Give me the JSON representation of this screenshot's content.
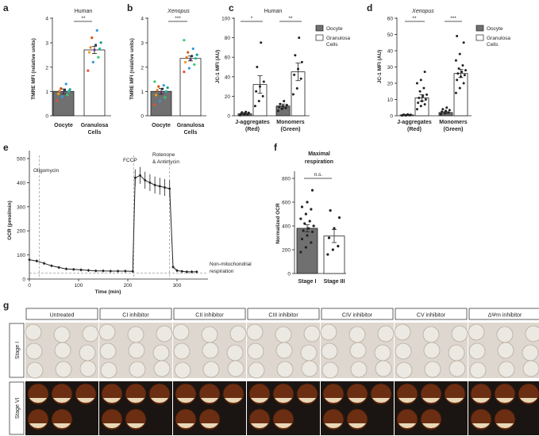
{
  "chart_data": [
    {
      "panel": "a",
      "type": "bar",
      "title": "Human",
      "ylabel": "TMRE MFI (relative units)",
      "ylim": [
        0,
        4
      ],
      "yticks": [
        0,
        1,
        2,
        3,
        4
      ],
      "categories": [
        "Oocyte",
        "Granulosa Cells"
      ],
      "values": [
        1.0,
        2.7
      ],
      "errors": [
        0.1,
        0.15
      ],
      "bar_colors": [
        "#707070",
        "#ffffff"
      ],
      "points": [
        [
          0.62,
          0.78,
          0.85,
          0.9,
          0.95,
          1.0,
          1.02,
          1.05,
          1.08,
          1.12,
          1.3
        ],
        [
          1.85,
          2.2,
          2.4,
          2.6,
          2.7,
          2.75,
          2.8,
          2.9,
          3.0,
          3.2,
          3.5
        ]
      ],
      "point_colors": [
        "#e74c3c",
        "#3498db",
        "#2ecc71",
        "#f39c12",
        "#8e44ad",
        "#1abc9c",
        "#e67e22",
        "#2c3e50",
        "#16a085",
        "#d35400",
        "#3498db"
      ],
      "significance": "**"
    },
    {
      "panel": "b",
      "type": "bar",
      "title": "Xenopus",
      "ylabel": "TMRE MFI (relative units)",
      "ylim": [
        0,
        4
      ],
      "yticks": [
        0,
        1,
        2,
        3,
        4
      ],
      "categories": [
        "Oocyte",
        "Granulosa Cells"
      ],
      "values": [
        1.0,
        2.35
      ],
      "errors": [
        0.12,
        0.1
      ],
      "bar_colors": [
        "#707070",
        "#ffffff"
      ],
      "points": [
        [
          0.45,
          0.6,
          0.75,
          0.85,
          0.95,
          1.0,
          1.05,
          1.1,
          1.15,
          1.2,
          1.25,
          1.4
        ],
        [
          1.8,
          1.95,
          2.1,
          2.2,
          2.3,
          2.35,
          2.4,
          2.45,
          2.5,
          2.6,
          2.75,
          3.1
        ]
      ],
      "point_colors": [
        "#e74c3c",
        "#3498db",
        "#2ecc71",
        "#f39c12",
        "#8e44ad",
        "#1abc9c",
        "#e67e22",
        "#2c3e50",
        "#16a085",
        "#d35400",
        "#3498db",
        "#2ecc71"
      ],
      "significance": "***"
    },
    {
      "panel": "c",
      "type": "bar",
      "title": "Human",
      "ylabel": "JC-1 MFI (AU)",
      "ylim": [
        0,
        100
      ],
      "yticks": [
        0,
        20,
        40,
        60,
        80,
        100
      ],
      "categories": [
        "J-aggregates (Red)",
        "Monomers (Green)"
      ],
      "series": [
        {
          "name": "Oocyte",
          "values": [
            2,
            10
          ]
        },
        {
          "name": "Granulosa Cells",
          "values": [
            32,
            45
          ]
        }
      ],
      "errors": [
        [
          1,
          2
        ],
        [
          9,
          9
        ]
      ],
      "points": [
        [
          [
            0.5,
            1,
            1.5,
            2,
            2.5,
            3,
            3.5,
            4
          ],
          [
            5,
            7,
            8,
            9,
            10,
            11,
            12,
            15
          ]
        ],
        [
          [
            10,
            15,
            20,
            25,
            30,
            35,
            50,
            75
          ],
          [
            22,
            28,
            38,
            42,
            48,
            55,
            62,
            80
          ]
        ]
      ],
      "significance": [
        "*",
        "**"
      ],
      "legend": [
        "Oocyte",
        "Granulosa Cells"
      ]
    },
    {
      "panel": "d",
      "type": "bar",
      "title": "Xenopus",
      "ylabel": "JC-1 MFI (AU)",
      "ylim": [
        0,
        60
      ],
      "yticks": [
        0,
        10,
        20,
        30,
        40,
        50,
        60
      ],
      "categories": [
        "J-aggregates (Red)",
        "Monomers (Green)"
      ],
      "series": [
        {
          "name": "Oocyte",
          "values": [
            0.5,
            2
          ]
        },
        {
          "name": "Granulosa Cells",
          "values": [
            11,
            26
          ]
        }
      ],
      "errors": [
        [
          0.2,
          0.5
        ],
        [
          2,
          2.5
        ]
      ],
      "points": [
        [
          [
            0.1,
            0.2,
            0.3,
            0.4,
            0.5,
            0.6,
            0.7,
            0.8
          ],
          [
            1,
            1.5,
            2,
            2.5,
            3,
            3.5,
            4,
            5
          ]
        ],
        [
          [
            4,
            6,
            7,
            8,
            9,
            10,
            11,
            12,
            13,
            15,
            17,
            20,
            22,
            27
          ],
          [
            14,
            17,
            20,
            22,
            24,
            25,
            26,
            27,
            28,
            29,
            31,
            34,
            38,
            45,
            49
          ]
        ]
      ],
      "significance": [
        "**",
        "***"
      ],
      "legend": [
        "Oocyte",
        "Granulosa Cells"
      ]
    },
    {
      "panel": "e",
      "type": "line",
      "xlabel": "Time (min)",
      "ylabel": "OCR (pmol/min)",
      "xlim": [
        0,
        350
      ],
      "ylim": [
        0,
        500
      ],
      "xticks": [
        0,
        100,
        200,
        300
      ],
      "yticks": [
        0,
        100,
        200,
        300,
        400,
        500
      ],
      "x": [
        0,
        15,
        30,
        45,
        60,
        75,
        90,
        105,
        120,
        135,
        150,
        165,
        180,
        195,
        210,
        215,
        225,
        235,
        245,
        255,
        265,
        275,
        285,
        292,
        300,
        310,
        320,
        330,
        340
      ],
      "y": [
        80,
        75,
        65,
        55,
        48,
        42,
        40,
        38,
        36,
        34,
        34,
        33,
        33,
        33,
        32,
        420,
        430,
        410,
        400,
        390,
        385,
        380,
        375,
        50,
        35,
        32,
        30,
        30,
        30
      ],
      "annotations": [
        "Oligomycin",
        "FCCP",
        "Rotenone & Antimycin",
        "Non-mitochondrial respiration"
      ],
      "injection_times": [
        20,
        212,
        285
      ],
      "baseline": 25
    },
    {
      "panel": "f",
      "type": "bar",
      "title": "Maximal respiration",
      "ylabel": "Normalized OCR",
      "ylim": [
        0,
        800
      ],
      "yticks": [
        0,
        200,
        400,
        600,
        800
      ],
      "categories": [
        "Stage I",
        "Stage III"
      ],
      "values": [
        380,
        315
      ],
      "errors": [
        30,
        55
      ],
      "bar_colors": [
        "#707070",
        "#ffffff"
      ],
      "points": [
        [
          180,
          220,
          260,
          290,
          320,
          350,
          360,
          380,
          400,
          420,
          440,
          460,
          500,
          540,
          560,
          600,
          700
        ],
        [
          160,
          200,
          230,
          300,
          380,
          470,
          530
        ]
      ],
      "significance": "n.s."
    }
  ],
  "panel_g": {
    "label": "g",
    "columns": [
      "Untreated",
      "CI inhibitor",
      "CII inhibitor",
      "CIII inhibitor",
      "CIV inhibitor",
      "CV inhibitor",
      "ΔΨm inhibitor"
    ],
    "rows": [
      "Stage I",
      "Stage VI"
    ]
  },
  "labels": {
    "a": "a",
    "b": "b",
    "c": "c",
    "d": "d",
    "e": "e",
    "f": "f",
    "human_a": "Human",
    "xenopus_b": "Xenopus",
    "human_c": "Human",
    "xenopus_d": "Xenopus",
    "tmre_a": "TMRE MFI (relative units)",
    "tmre_b": "TMRE MFI (relative units)",
    "jc1_c": "JC-1 MFI (AU)",
    "jc1_d": "JC-1 MFI (AU)",
    "oocyte": "Oocyte",
    "granulosa": "Granulosa",
    "cells": "Cells",
    "jagg": "J-aggregates",
    "red": "(Red)",
    "mono": "Monomers",
    "green": "(Green)",
    "oligomycin": "Oligomycin",
    "fccp": "FCCP",
    "rotenone": "Rotenone",
    "antimycin": "& Antimycin",
    "nonmito": "Non-mitochondrial",
    "respiration": "respiration",
    "ocr": "OCR (pmol/min)",
    "time": "Time (min)",
    "maximal": "Maximal",
    "resp": "respiration",
    "normocr": "Normalized OCR",
    "stage1": "Stage I",
    "stage3": "Stage III",
    "ns": "n.s.",
    "g": "g",
    "stageI": "Stage I",
    "stageVI": "Stage VI"
  }
}
